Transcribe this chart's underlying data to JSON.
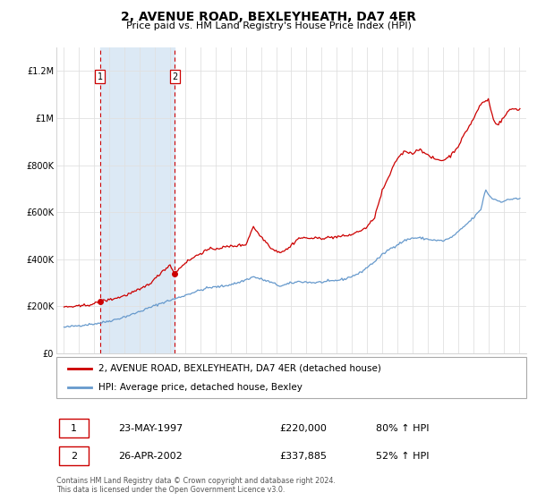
{
  "title": "2, AVENUE ROAD, BEXLEYHEATH, DA7 4ER",
  "subtitle": "Price paid vs. HM Land Registry's House Price Index (HPI)",
  "legend_label_red": "2, AVENUE ROAD, BEXLEYHEATH, DA7 4ER (detached house)",
  "legend_label_blue": "HPI: Average price, detached house, Bexley",
  "footer_line1": "Contains HM Land Registry data © Crown copyright and database right 2024.",
  "footer_line2": "This data is licensed under the Open Government Licence v3.0.",
  "sale1_label": "1",
  "sale1_date": "23-MAY-1997",
  "sale1_price": "£220,000",
  "sale1_hpi": "80% ↑ HPI",
  "sale2_label": "2",
  "sale2_date": "26-APR-2002",
  "sale2_price": "£337,885",
  "sale2_hpi": "52% ↑ HPI",
  "sale1_x": 1997.39,
  "sale1_y": 220000,
  "sale2_x": 2002.32,
  "sale2_y": 337885,
  "color_red": "#cc0000",
  "color_blue": "#6699cc",
  "color_shade": "#dce9f5",
  "color_grid": "#e0e0e0",
  "color_bg": "#ffffff",
  "ylim_min": 0,
  "ylim_max": 1300000,
  "xlim_min": 1994.5,
  "xlim_max": 2025.5,
  "yticks": [
    0,
    200000,
    400000,
    600000,
    800000,
    1000000,
    1200000
  ],
  "ylabels": [
    "£0",
    "£200K",
    "£400K",
    "£600K",
    "£800K",
    "£1M",
    "£1.2M"
  ],
  "xtick_start": 1995,
  "xtick_end": 2025
}
